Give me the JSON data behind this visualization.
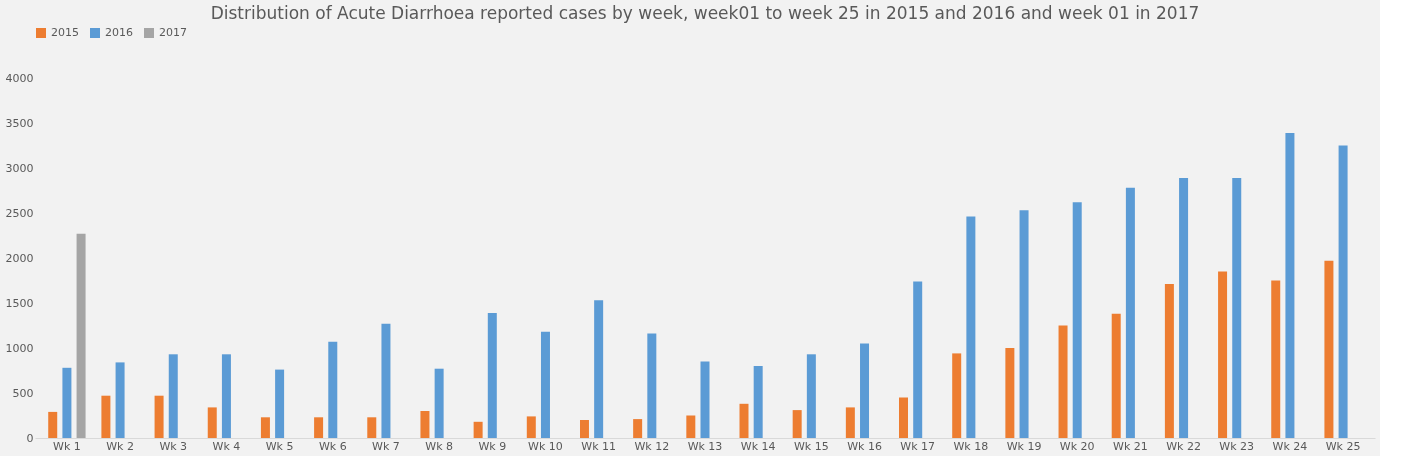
{
  "chart_data": {
    "type": "bar",
    "title": "Distribution of Acute Diarrhoea reported cases by week, week01 to week 25 in 2015 and 2016 and week 01 in 2017",
    "categories": [
      "Wk 1",
      "Wk 2",
      "Wk 3",
      "Wk 4",
      "Wk 5",
      "Wk 6",
      "Wk 7",
      "Wk 8",
      "Wk 9",
      "Wk 10",
      "Wk 11",
      "Wk 12",
      "Wk 13",
      "Wk 14",
      "Wk 15",
      "Wk 16",
      "Wk 17",
      "Wk 18",
      "Wk 19",
      "Wk 20",
      "Wk 21",
      "Wk 22",
      "Wk 23",
      "Wk 24",
      "Wk 25"
    ],
    "series": [
      {
        "name": "2015",
        "color": "#ed7d31",
        "values": [
          290,
          470,
          470,
          340,
          230,
          230,
          230,
          300,
          180,
          240,
          200,
          210,
          250,
          380,
          310,
          340,
          450,
          940,
          1000,
          1250,
          1380,
          1710,
          1850,
          1750,
          1970
        ]
      },
      {
        "name": "2016",
        "color": "#5b9bd5",
        "values": [
          780,
          840,
          930,
          930,
          760,
          1070,
          1270,
          770,
          1390,
          1180,
          1530,
          1160,
          850,
          800,
          930,
          1050,
          1740,
          2460,
          2530,
          2620,
          2780,
          2890,
          2890,
          3390,
          3250
        ]
      },
      {
        "name": "2017",
        "color": "#a5a5a5",
        "values": [
          2270,
          null,
          null,
          null,
          null,
          null,
          null,
          null,
          null,
          null,
          null,
          null,
          null,
          null,
          null,
          null,
          null,
          null,
          null,
          null,
          null,
          null,
          null,
          null,
          null
        ]
      }
    ],
    "ylim": [
      0,
      4000
    ],
    "yticks": [
      0,
      500,
      1000,
      1500,
      2000,
      2500,
      3000,
      3500,
      4000
    ],
    "grid": false,
    "legend": "top"
  }
}
